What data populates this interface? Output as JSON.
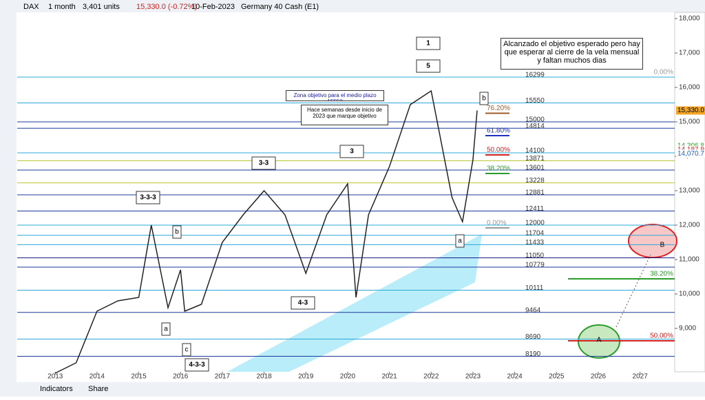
{
  "toolbar": {
    "symbol": "DAX",
    "interval": "1 month",
    "units": "3,401 units",
    "price": "15,330.0 (-0.72%)",
    "date": "10-Feb-2023",
    "instrument": "Germany 40 Cash (E1)",
    "indicators": "Indicators",
    "share": "Share"
  },
  "chart_data": {
    "type": "line",
    "color": "#222222",
    "x": [
      2013.0,
      2013.5,
      2014.0,
      2014.5,
      2015.0,
      2015.3,
      2015.7,
      2016.0,
      2016.1,
      2016.5,
      2017.0,
      2017.5,
      2018.0,
      2018.5,
      2019.0,
      2019.5,
      2020.0,
      2020.2,
      2020.5,
      2021.0,
      2021.5,
      2022.0,
      2022.5,
      2022.75,
      2023.0,
      2023.1
    ],
    "values": [
      7700,
      8000,
      9500,
      9800,
      9900,
      12000,
      9600,
      10700,
      9500,
      9700,
      11500,
      12300,
      13000,
      12300,
      10600,
      12300,
      13200,
      9900,
      12300,
      13700,
      15500,
      15900,
      12800,
      12100,
      13900,
      15330
    ],
    "xlim": [
      2012.09,
      2027.83
    ],
    "xticks": [
      2013,
      2014,
      2015,
      2016,
      2017,
      2018,
      2019,
      2020,
      2021,
      2022,
      2023,
      2024,
      2025,
      2026,
      2027
    ],
    "ylim": [
      7740,
      18180
    ],
    "yticks": [
      {
        "value": 9000,
        "label": "9,000"
      },
      {
        "value": 10000,
        "label": "10,000"
      },
      {
        "value": 11000,
        "label": "11,000"
      },
      {
        "value": 12000,
        "label": "12,000"
      },
      {
        "value": 13000,
        "label": "13,000"
      },
      {
        "value": 14000,
        "label": "14,000"
      },
      {
        "value": 15000,
        "label": "15,000"
      },
      {
        "value": 16000,
        "label": "16,000"
      },
      {
        "value": 17000,
        "label": "17,000"
      },
      {
        "value": 18000,
        "label": "18,000"
      }
    ],
    "levels": [
      16299,
      15550,
      15000,
      14814,
      14100,
      13871,
      13601,
      13228,
      12881,
      12411,
      12000,
      11704,
      11433,
      11050,
      10779,
      10111,
      9464,
      8690,
      8190
    ],
    "level_colors": [
      "#29a8d8",
      "#29a8d8",
      "#1a3a9a",
      "#1a3a9a",
      "#29a8d8",
      "#b8c830",
      "#1a3a9a",
      "#b8c830",
      "#1a3a9a",
      "#1a3a9a",
      "#29a8d8",
      "#29a8d8",
      "#29a8d8",
      "#1a1a80",
      "#1a3a9a",
      "#29a8d8",
      "#1a3a9a",
      "#29a8d8",
      "#1a3a9a"
    ],
    "fib_levels": [
      {
        "value": 16299,
        "label": "0.00%",
        "color": "#999999"
      },
      {
        "value": 15250,
        "label": "76.20%",
        "color": "#a05a20"
      },
      {
        "value": 14600,
        "label": "61.80%",
        "color": "#2030c0"
      },
      {
        "value": 14040,
        "label": "50.00%",
        "color": "#d02020"
      },
      {
        "value": 13500,
        "label": "38.20%",
        "color": "#2a9a2a"
      },
      {
        "value": 11920,
        "label": "0.00%",
        "color": "#999999"
      },
      {
        "value": 10440,
        "label": "38.20%",
        "color": "#2a9a2a"
      },
      {
        "value": 8640,
        "label": "50.00%",
        "color": "#d02020"
      }
    ],
    "price_labels": [
      {
        "value": 15330,
        "label": "15,330.0",
        "color": "#f5a623"
      },
      {
        "value": 14306.8,
        "label": "14,306.8",
        "color": "#2a9a2a"
      },
      {
        "value": 14187.9,
        "label": "14,187.9",
        "color": "#d02020"
      },
      {
        "value": 14070.7,
        "label": "14,070.7",
        "color": "#2060c0"
      }
    ],
    "annotations": [
      "1",
      "5",
      "3",
      "3-3",
      "3-3-3",
      "b",
      "a",
      "c",
      "4-3",
      "4-3-3",
      "b",
      "a",
      "A",
      "B"
    ],
    "notes": [
      "Alcanzado el objetivo esperado pero hay que esperar al cierre de la vela mensual y faltan muchos dias",
      "Zona objetivo para el medio plazo 15550",
      "Hace semanas desde inicio de 2023 que marque objetivo"
    ]
  }
}
